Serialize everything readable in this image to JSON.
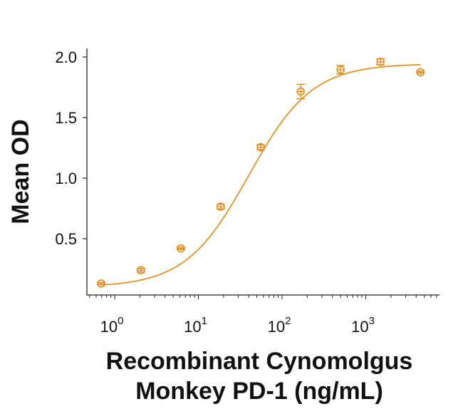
{
  "chart_data": {
    "type": "scatter",
    "title": "",
    "xlabel": [
      "Recombinant Cynomolgus",
      "Monkey PD-1 (ng/mL)"
    ],
    "ylabel": "Mean OD",
    "xscale": "log",
    "xlim": [
      0.5,
      7000
    ],
    "ylim": [
      0.05,
      2.07
    ],
    "grid": false,
    "legend": null,
    "color": "#E8860F",
    "y_ticks": [
      {
        "value": 0.5,
        "label": "0.5"
      },
      {
        "value": 1.0,
        "label": "1.0"
      },
      {
        "value": 1.5,
        "label": "1.5"
      },
      {
        "value": 2.0,
        "label": "2.0"
      }
    ],
    "x_ticks": [
      {
        "value": 1,
        "base": "10",
        "exp": "0"
      },
      {
        "value": 10,
        "base": "10",
        "exp": "1"
      },
      {
        "value": 100,
        "base": "10",
        "exp": "2"
      },
      {
        "value": 1000,
        "base": "10",
        "exp": "3"
      }
    ],
    "series": [
      {
        "name": "Recombinant Cynomolgus Monkey PD-1",
        "marker": "open-circle",
        "points": [
          {
            "x": 0.69,
            "y": 0.13,
            "err": 0.01
          },
          {
            "x": 2.06,
            "y": 0.24,
            "err": 0.015
          },
          {
            "x": 6.17,
            "y": 0.42,
            "err": 0.01
          },
          {
            "x": 18.5,
            "y": 0.765,
            "err": 0.02
          },
          {
            "x": 55.6,
            "y": 1.255,
            "err": 0.02
          },
          {
            "x": 167,
            "y": 1.715,
            "err": 0.06
          },
          {
            "x": 500,
            "y": 1.895,
            "err": 0.035
          },
          {
            "x": 1500,
            "y": 1.96,
            "err": 0.025
          },
          {
            "x": 4500,
            "y": 1.875,
            "err": 0.01
          }
        ],
        "fit": {
          "type": "4PL",
          "bottom": 0.1,
          "top": 1.945,
          "ec50": 40,
          "hill": 1.15
        }
      }
    ]
  }
}
